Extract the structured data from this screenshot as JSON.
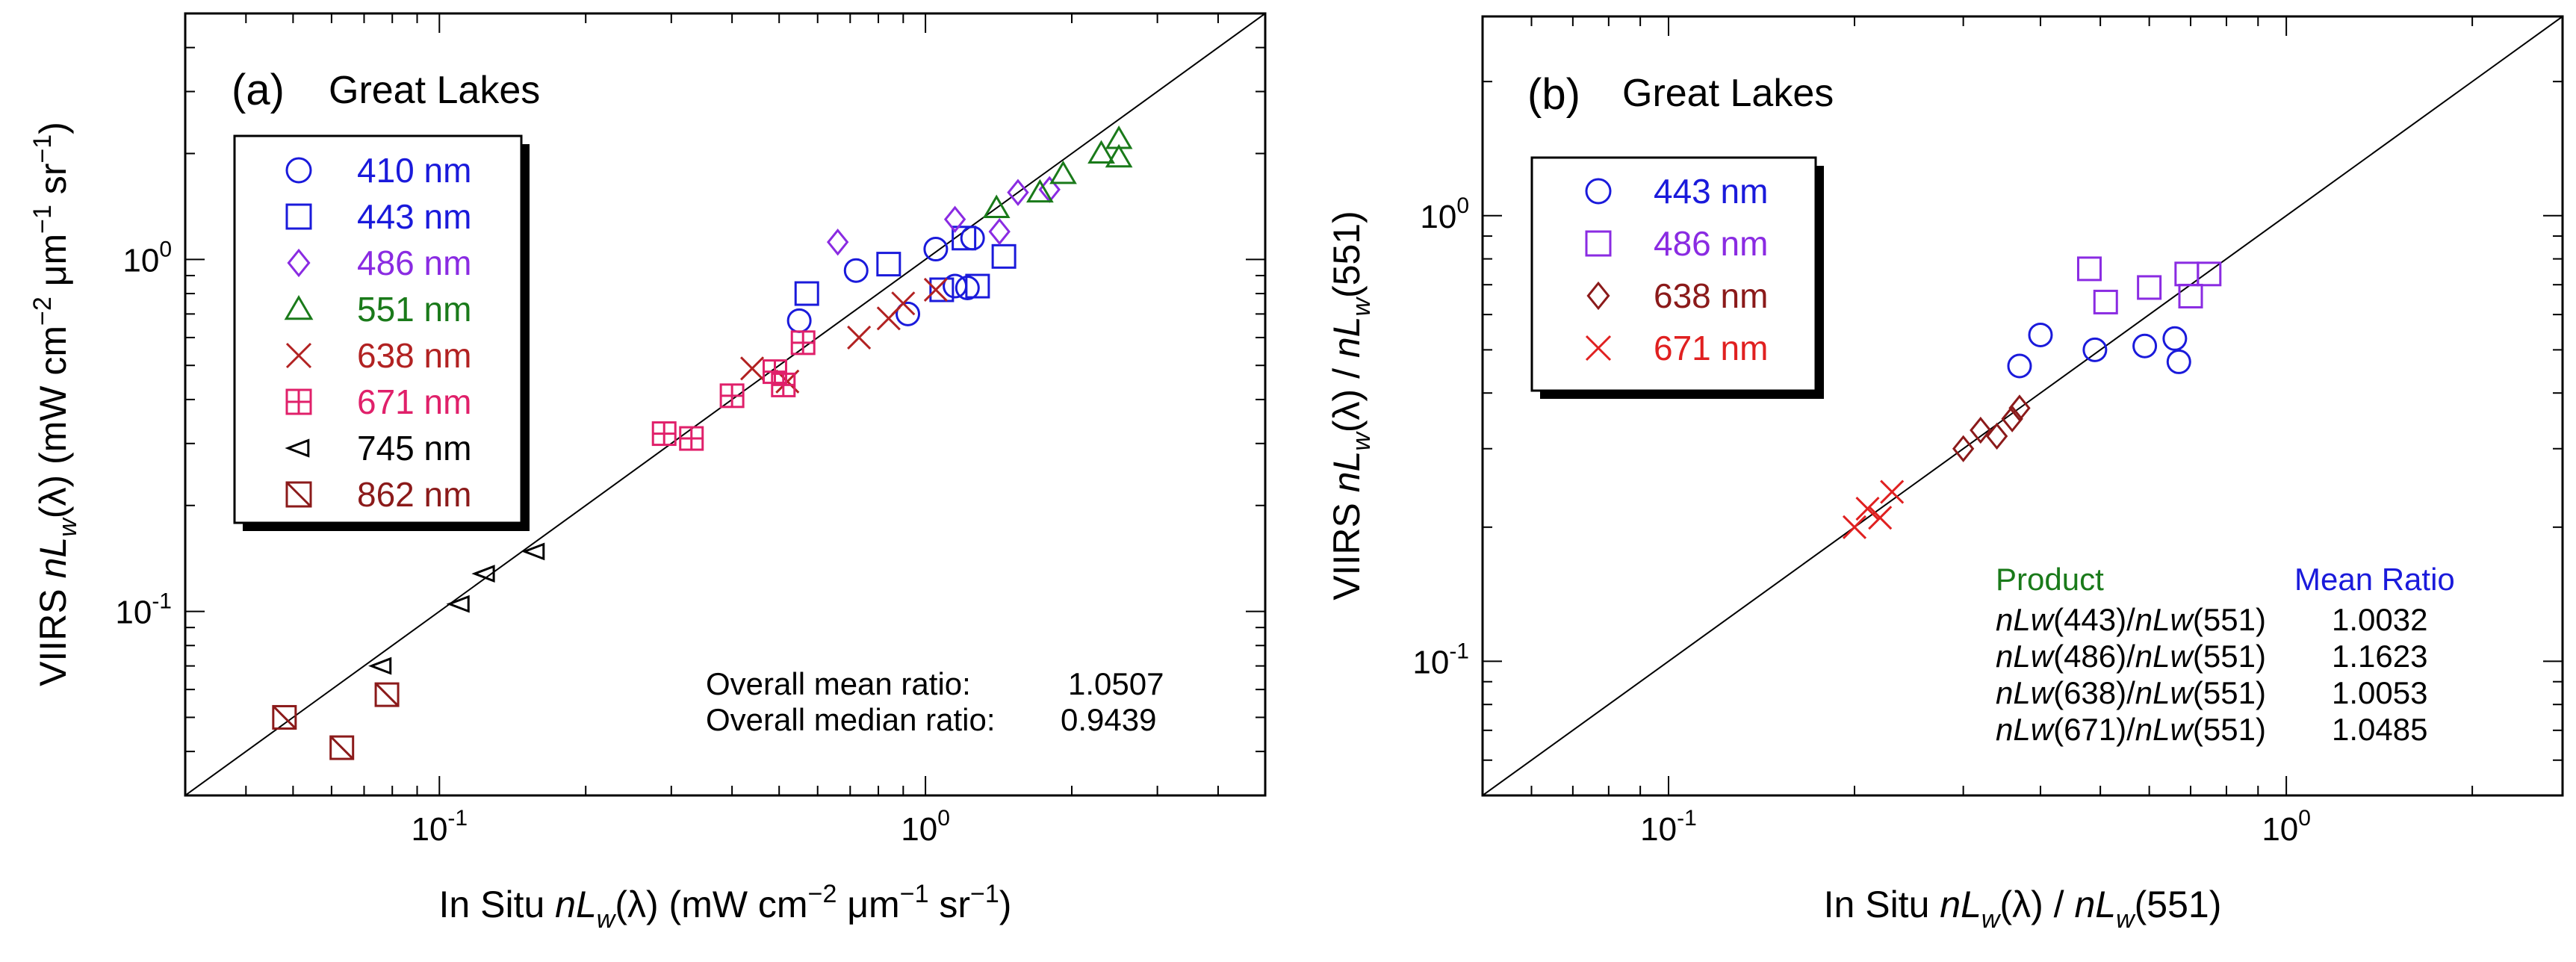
{
  "chart_data": [
    {
      "type": "scatter",
      "panel_label": "(a)",
      "title": "Great Lakes",
      "xscale": "log",
      "yscale": "log",
      "xlim": [
        0.03,
        5.0
      ],
      "ylim": [
        0.03,
        5.0
      ],
      "xticks": [
        {
          "value": 0.1,
          "base": "10",
          "exp": "-1"
        },
        {
          "value": 1.0,
          "base": "10",
          "exp": "0"
        }
      ],
      "yticks": [
        {
          "value": 0.1,
          "base": "10",
          "exp": "-1"
        },
        {
          "value": 1.0,
          "base": "10",
          "exp": "0"
        }
      ],
      "xlabel": {
        "pre": "In Situ ",
        "main": "nL",
        "sub": "w",
        "post": "(λ) (mW cm",
        "exp1": "−2",
        "mid": " μm",
        "exp2": "−1",
        "end": " sr",
        "exp3": "−1",
        "close": ")"
      },
      "ylabel": {
        "pre": "VIIRS ",
        "main": "nL",
        "sub": "w",
        "post": "(λ) (mW cm",
        "exp1": "−2",
        "mid": " μm",
        "exp2": "−1",
        "end": " sr",
        "exp3": "−1",
        "close": ")"
      },
      "one_to_one_line": true,
      "series": [
        {
          "name": "410 nm",
          "marker": "circle",
          "color": "#1a1adb",
          "points": [
            [
              0.55,
              0.67
            ],
            [
              0.72,
              0.93
            ],
            [
              0.92,
              0.7
            ],
            [
              1.05,
              1.07
            ],
            [
              1.15,
              0.84
            ],
            [
              1.22,
              0.83
            ],
            [
              1.25,
              1.15
            ]
          ]
        },
        {
          "name": "443 nm",
          "marker": "square",
          "color": "#1a1adb",
          "points": [
            [
              0.57,
              0.8
            ],
            [
              0.84,
              0.97
            ],
            [
              1.08,
              0.82
            ],
            [
              1.2,
              1.15
            ],
            [
              1.28,
              0.84
            ],
            [
              1.45,
              1.02
            ]
          ]
        },
        {
          "name": "486 nm",
          "marker": "diamond",
          "color": "#8a2be2",
          "points": [
            [
              0.66,
              1.12
            ],
            [
              1.15,
              1.3
            ],
            [
              1.42,
              1.2
            ],
            [
              1.55,
              1.55
            ],
            [
              1.8,
              1.58
            ]
          ]
        },
        {
          "name": "551 nm",
          "marker": "triangle",
          "color": "#1a7a1a",
          "points": [
            [
              1.4,
              1.4
            ],
            [
              1.72,
              1.55
            ],
            [
              1.92,
              1.75
            ],
            [
              2.3,
              2.0
            ],
            [
              2.5,
              1.95
            ],
            [
              2.5,
              2.2
            ]
          ]
        },
        {
          "name": "638 nm",
          "marker": "x",
          "color": "#b22222",
          "points": [
            [
              0.44,
              0.49
            ],
            [
              0.52,
              0.45
            ],
            [
              0.73,
              0.6
            ],
            [
              0.84,
              0.68
            ],
            [
              0.9,
              0.75
            ],
            [
              1.05,
              0.82
            ]
          ]
        },
        {
          "name": "671 nm",
          "marker": "square-plus",
          "color": "#e0206a",
          "points": [
            [
              0.29,
              0.32
            ],
            [
              0.33,
              0.31
            ],
            [
              0.4,
              0.41
            ],
            [
              0.49,
              0.48
            ],
            [
              0.51,
              0.44
            ],
            [
              0.56,
              0.58
            ]
          ]
        },
        {
          "name": "745 nm",
          "marker": "triangle-left",
          "color": "#000000",
          "points": [
            [
              0.076,
              0.07
            ],
            [
              0.11,
              0.105
            ],
            [
              0.124,
              0.128
            ],
            [
              0.157,
              0.148
            ]
          ]
        },
        {
          "name": "862 nm",
          "marker": "square-slash",
          "color": "#8b1a1a",
          "points": [
            [
              0.048,
              0.05
            ],
            [
              0.063,
              0.041
            ],
            [
              0.078,
              0.058
            ]
          ]
        }
      ],
      "annotations": [
        {
          "label": "Overall mean ratio:",
          "value": "1.0507"
        },
        {
          "label": "Overall median ratio:",
          "value": "0.9439"
        }
      ]
    },
    {
      "type": "scatter",
      "panel_label": "(b)",
      "title": "Great Lakes",
      "xscale": "log",
      "yscale": "log",
      "xlim": [
        0.05,
        2.8
      ],
      "ylim": [
        0.05,
        2.8
      ],
      "xticks": [
        {
          "value": 0.1,
          "base": "10",
          "exp": "-1"
        },
        {
          "value": 1.0,
          "base": "10",
          "exp": "0"
        }
      ],
      "yticks": [
        {
          "value": 0.1,
          "base": "10",
          "exp": "-1"
        },
        {
          "value": 1.0,
          "base": "10",
          "exp": "0"
        }
      ],
      "xlabel": {
        "pre": "In Situ ",
        "main": "nL",
        "sub": "w",
        "post": "(λ) / ",
        "main2": "nL",
        "sub2": "w",
        "end": "(551)"
      },
      "ylabel": {
        "pre": "VIIRS ",
        "main": "nL",
        "sub": "w",
        "post": "(λ) / ",
        "main2": "nL",
        "sub2": "w",
        "end": "(551)"
      },
      "one_to_one_line": true,
      "series": [
        {
          "name": "443 nm",
          "marker": "circle",
          "color": "#1a1adb",
          "points": [
            [
              0.37,
              0.46
            ],
            [
              0.4,
              0.54
            ],
            [
              0.49,
              0.5
            ],
            [
              0.59,
              0.51
            ],
            [
              0.66,
              0.53
            ],
            [
              0.67,
              0.47
            ]
          ]
        },
        {
          "name": "486 nm",
          "marker": "square",
          "color": "#8a2be2",
          "points": [
            [
              0.48,
              0.76
            ],
            [
              0.51,
              0.64
            ],
            [
              0.6,
              0.69
            ],
            [
              0.69,
              0.74
            ],
            [
              0.7,
              0.66
            ],
            [
              0.75,
              0.74
            ]
          ]
        },
        {
          "name": "638 nm",
          "marker": "diamond",
          "color": "#8b1a1a",
          "points": [
            [
              0.3,
              0.3
            ],
            [
              0.32,
              0.33
            ],
            [
              0.34,
              0.32
            ],
            [
              0.36,
              0.35
            ],
            [
              0.37,
              0.37
            ]
          ]
        },
        {
          "name": "671 nm",
          "marker": "x",
          "color": "#e02020",
          "points": [
            [
              0.2,
              0.2
            ],
            [
              0.21,
              0.22
            ],
            [
              0.22,
              0.21
            ],
            [
              0.23,
              0.24
            ]
          ]
        }
      ],
      "table": {
        "header_product": "Product",
        "header_ratio": "Mean Ratio",
        "rows": [
          {
            "n1": "443",
            "n2": "551",
            "ratio": "1.0032"
          },
          {
            "n1": "486",
            "n2": "551",
            "ratio": "1.1623"
          },
          {
            "n1": "638",
            "n2": "551",
            "ratio": "1.0053"
          },
          {
            "n1": "671",
            "n2": "551",
            "ratio": "1.0485"
          }
        ]
      }
    }
  ],
  "colors": {
    "header_product": "#1a7a1a",
    "header_ratio": "#1a1adb"
  }
}
